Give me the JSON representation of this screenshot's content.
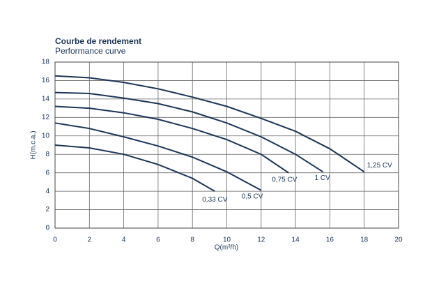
{
  "chart_data": {
    "type": "line",
    "title": "Courbe de rendement",
    "subtitle": "Performance curve",
    "x_label": "Q(m³/h)",
    "y_label": "H(m.c.a.)",
    "xlim": [
      0,
      20
    ],
    "xticks": [
      0,
      2,
      4,
      6,
      8,
      10,
      12,
      14,
      16,
      18,
      20
    ],
    "ylim": [
      0,
      18
    ],
    "yticks": [
      0,
      2,
      4,
      6,
      8,
      10,
      12,
      14,
      16,
      18
    ],
    "grid": true,
    "series": [
      {
        "name": "0,33 CV",
        "color": "#1c3557",
        "x": [
          0,
          2,
          4,
          6,
          8,
          9.3
        ],
        "values": [
          9.0,
          8.7,
          8.0,
          6.9,
          5.4,
          4.0
        ]
      },
      {
        "name": "0,5 CV",
        "color": "#1c3557",
        "x": [
          0,
          2,
          4,
          6,
          8,
          10,
          12
        ],
        "values": [
          11.4,
          10.8,
          9.9,
          8.9,
          7.7,
          6.1,
          4.1
        ]
      },
      {
        "name": "0,75 CV",
        "color": "#1c3557",
        "x": [
          0,
          2,
          4,
          6,
          8,
          10,
          12,
          13.6
        ],
        "values": [
          13.2,
          13.0,
          12.5,
          11.8,
          10.8,
          9.6,
          8.0,
          6.0
        ]
      },
      {
        "name": "1 CV",
        "color": "#1c3557",
        "x": [
          0,
          2,
          4,
          6,
          8,
          10,
          12,
          14,
          15.6
        ],
        "values": [
          14.7,
          14.6,
          14.1,
          13.5,
          12.6,
          11.4,
          9.9,
          8.0,
          6.1
        ]
      },
      {
        "name": "1,25 CV",
        "color": "#1c3557",
        "x": [
          0,
          2,
          4,
          6,
          8,
          10,
          12,
          14,
          16,
          18
        ],
        "values": [
          16.5,
          16.3,
          15.8,
          15.1,
          14.2,
          13.2,
          11.9,
          10.5,
          8.6,
          6.1
        ]
      }
    ]
  }
}
